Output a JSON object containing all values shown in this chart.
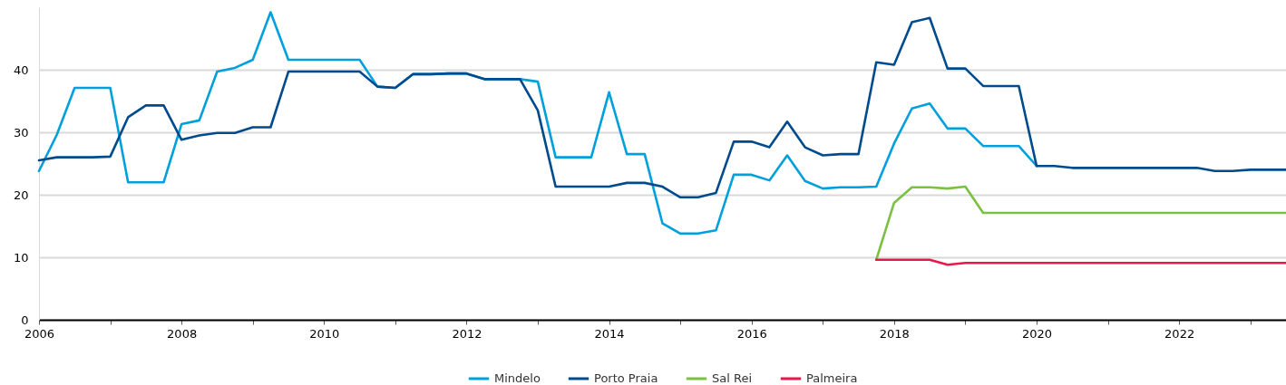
{
  "chart_data": {
    "type": "line",
    "x": [
      2006,
      2006.25,
      2006.5,
      2006.75,
      2007,
      2007.25,
      2007.5,
      2007.75,
      2008,
      2008.25,
      2008.5,
      2008.75,
      2009,
      2009.25,
      2009.5,
      2009.75,
      2010,
      2010.25,
      2010.5,
      2010.75,
      2011,
      2011.25,
      2011.5,
      2011.75,
      2012,
      2012.25,
      2012.5,
      2012.75,
      2013,
      2013.25,
      2013.5,
      2013.75,
      2014,
      2014.25,
      2014.5,
      2014.75,
      2015,
      2015.25,
      2015.5,
      2015.75,
      2016,
      2016.25,
      2016.5,
      2016.75,
      2017,
      2017.25,
      2017.5,
      2017.75,
      2018,
      2018.25,
      2018.5,
      2018.75,
      2019,
      2019.25,
      2019.5,
      2019.75,
      2020,
      2020.25,
      2020.5,
      2020.75,
      2021,
      2021.25,
      2021.5,
      2021.75,
      2022,
      2022.25,
      2022.5,
      2022.75,
      2023,
      2023.25,
      2023.5
    ],
    "series": [
      {
        "name": "Mindelo",
        "color": "#00a0dc",
        "values": [
          23.8,
          29.6,
          37.1,
          37.1,
          37.1,
          22.0,
          22.0,
          22.0,
          31.3,
          31.9,
          39.7,
          40.3,
          41.6,
          49.2,
          41.6,
          41.6,
          41.6,
          41.6,
          41.6,
          37.3,
          37.1,
          39.3,
          39.3,
          39.4,
          39.4,
          38.5,
          38.5,
          38.5,
          38.1,
          26.0,
          26.0,
          26.0,
          36.4,
          26.5,
          26.5,
          15.4,
          13.8,
          13.8,
          14.3,
          23.2,
          23.2,
          22.3,
          26.3,
          22.2,
          21.0,
          21.2,
          21.2,
          21.3,
          28.2,
          33.8,
          34.6,
          30.6,
          30.6,
          27.8,
          27.8,
          27.8,
          24.6,
          null,
          null,
          null,
          null,
          null,
          null,
          null,
          null,
          null,
          null,
          null,
          null,
          null,
          null
        ]
      },
      {
        "name": "Porto Praia",
        "color": "#004b8d",
        "values": [
          25.5,
          26.0,
          26.0,
          26.0,
          26.1,
          32.4,
          34.3,
          34.3,
          28.8,
          29.5,
          29.9,
          29.9,
          30.8,
          30.8,
          39.7,
          39.7,
          39.7,
          39.7,
          39.7,
          37.3,
          37.1,
          39.3,
          39.3,
          39.4,
          39.4,
          38.5,
          38.5,
          38.5,
          33.5,
          21.3,
          21.3,
          21.3,
          21.3,
          21.9,
          21.9,
          21.3,
          19.6,
          19.6,
          20.3,
          28.5,
          28.5,
          27.6,
          31.7,
          27.6,
          26.3,
          26.5,
          26.5,
          41.2,
          40.8,
          47.6,
          48.3,
          40.2,
          40.2,
          37.4,
          37.4,
          37.4,
          24.6,
          24.6,
          24.3,
          24.3,
          24.3,
          24.3,
          24.3,
          24.3,
          24.3,
          24.3,
          23.8,
          23.8,
          24.0,
          24.0,
          24.0
        ]
      },
      {
        "name": "Sal Rei",
        "color": "#7ac143",
        "values": [
          null,
          null,
          null,
          null,
          null,
          null,
          null,
          null,
          null,
          null,
          null,
          null,
          null,
          null,
          null,
          null,
          null,
          null,
          null,
          null,
          null,
          null,
          null,
          null,
          null,
          null,
          null,
          null,
          null,
          null,
          null,
          null,
          null,
          null,
          null,
          null,
          null,
          null,
          null,
          null,
          null,
          null,
          null,
          null,
          null,
          null,
          null,
          9.6,
          18.7,
          21.2,
          21.2,
          21.0,
          21.3,
          17.1,
          17.1,
          17.1,
          17.1,
          17.1,
          17.1,
          17.1,
          17.1,
          17.1,
          17.1,
          17.1,
          17.1,
          17.1,
          17.1,
          17.1,
          17.1,
          17.1,
          17.1
        ]
      },
      {
        "name": "Palmeira",
        "color": "#e8194a",
        "values": [
          null,
          null,
          null,
          null,
          null,
          null,
          null,
          null,
          null,
          null,
          null,
          null,
          null,
          null,
          null,
          null,
          null,
          null,
          null,
          null,
          null,
          null,
          null,
          null,
          null,
          null,
          null,
          null,
          null,
          null,
          null,
          null,
          null,
          null,
          null,
          null,
          null,
          null,
          null,
          null,
          null,
          null,
          null,
          null,
          null,
          null,
          null,
          9.6,
          9.6,
          9.6,
          9.6,
          8.8,
          9.1,
          9.1,
          9.1,
          9.1,
          9.1,
          9.1,
          9.1,
          9.1,
          9.1,
          9.1,
          9.1,
          9.1,
          9.1,
          9.1,
          9.1,
          9.1,
          9.1,
          9.1,
          9.1
        ]
      }
    ],
    "xlim": [
      2006,
      2023.5
    ],
    "xticks": [
      {
        "value": 2006,
        "label": "2006"
      },
      {
        "value": 2007,
        "label": null
      },
      {
        "value": 2008,
        "label": "2008"
      },
      {
        "value": 2009,
        "label": null
      },
      {
        "value": 2010,
        "label": "2010"
      },
      {
        "value": 2011,
        "label": null
      },
      {
        "value": 2012,
        "label": "2012"
      },
      {
        "value": 2013,
        "label": null
      },
      {
        "value": 2014,
        "label": "2014"
      },
      {
        "value": 2015,
        "label": null
      },
      {
        "value": 2016,
        "label": "2016"
      },
      {
        "value": 2017,
        "label": null
      },
      {
        "value": 2018,
        "label": "2018"
      },
      {
        "value": 2019,
        "label": null
      },
      {
        "value": 2020,
        "label": "2020"
      },
      {
        "value": 2021,
        "label": null
      },
      {
        "value": 2022,
        "label": "2022"
      },
      {
        "value": 2023,
        "label": null
      }
    ],
    "ylim": [
      0,
      50
    ],
    "yticks": [
      0,
      10,
      20,
      30,
      40
    ],
    "grid": "y",
    "legend": "bottom",
    "line_style": "solid"
  }
}
